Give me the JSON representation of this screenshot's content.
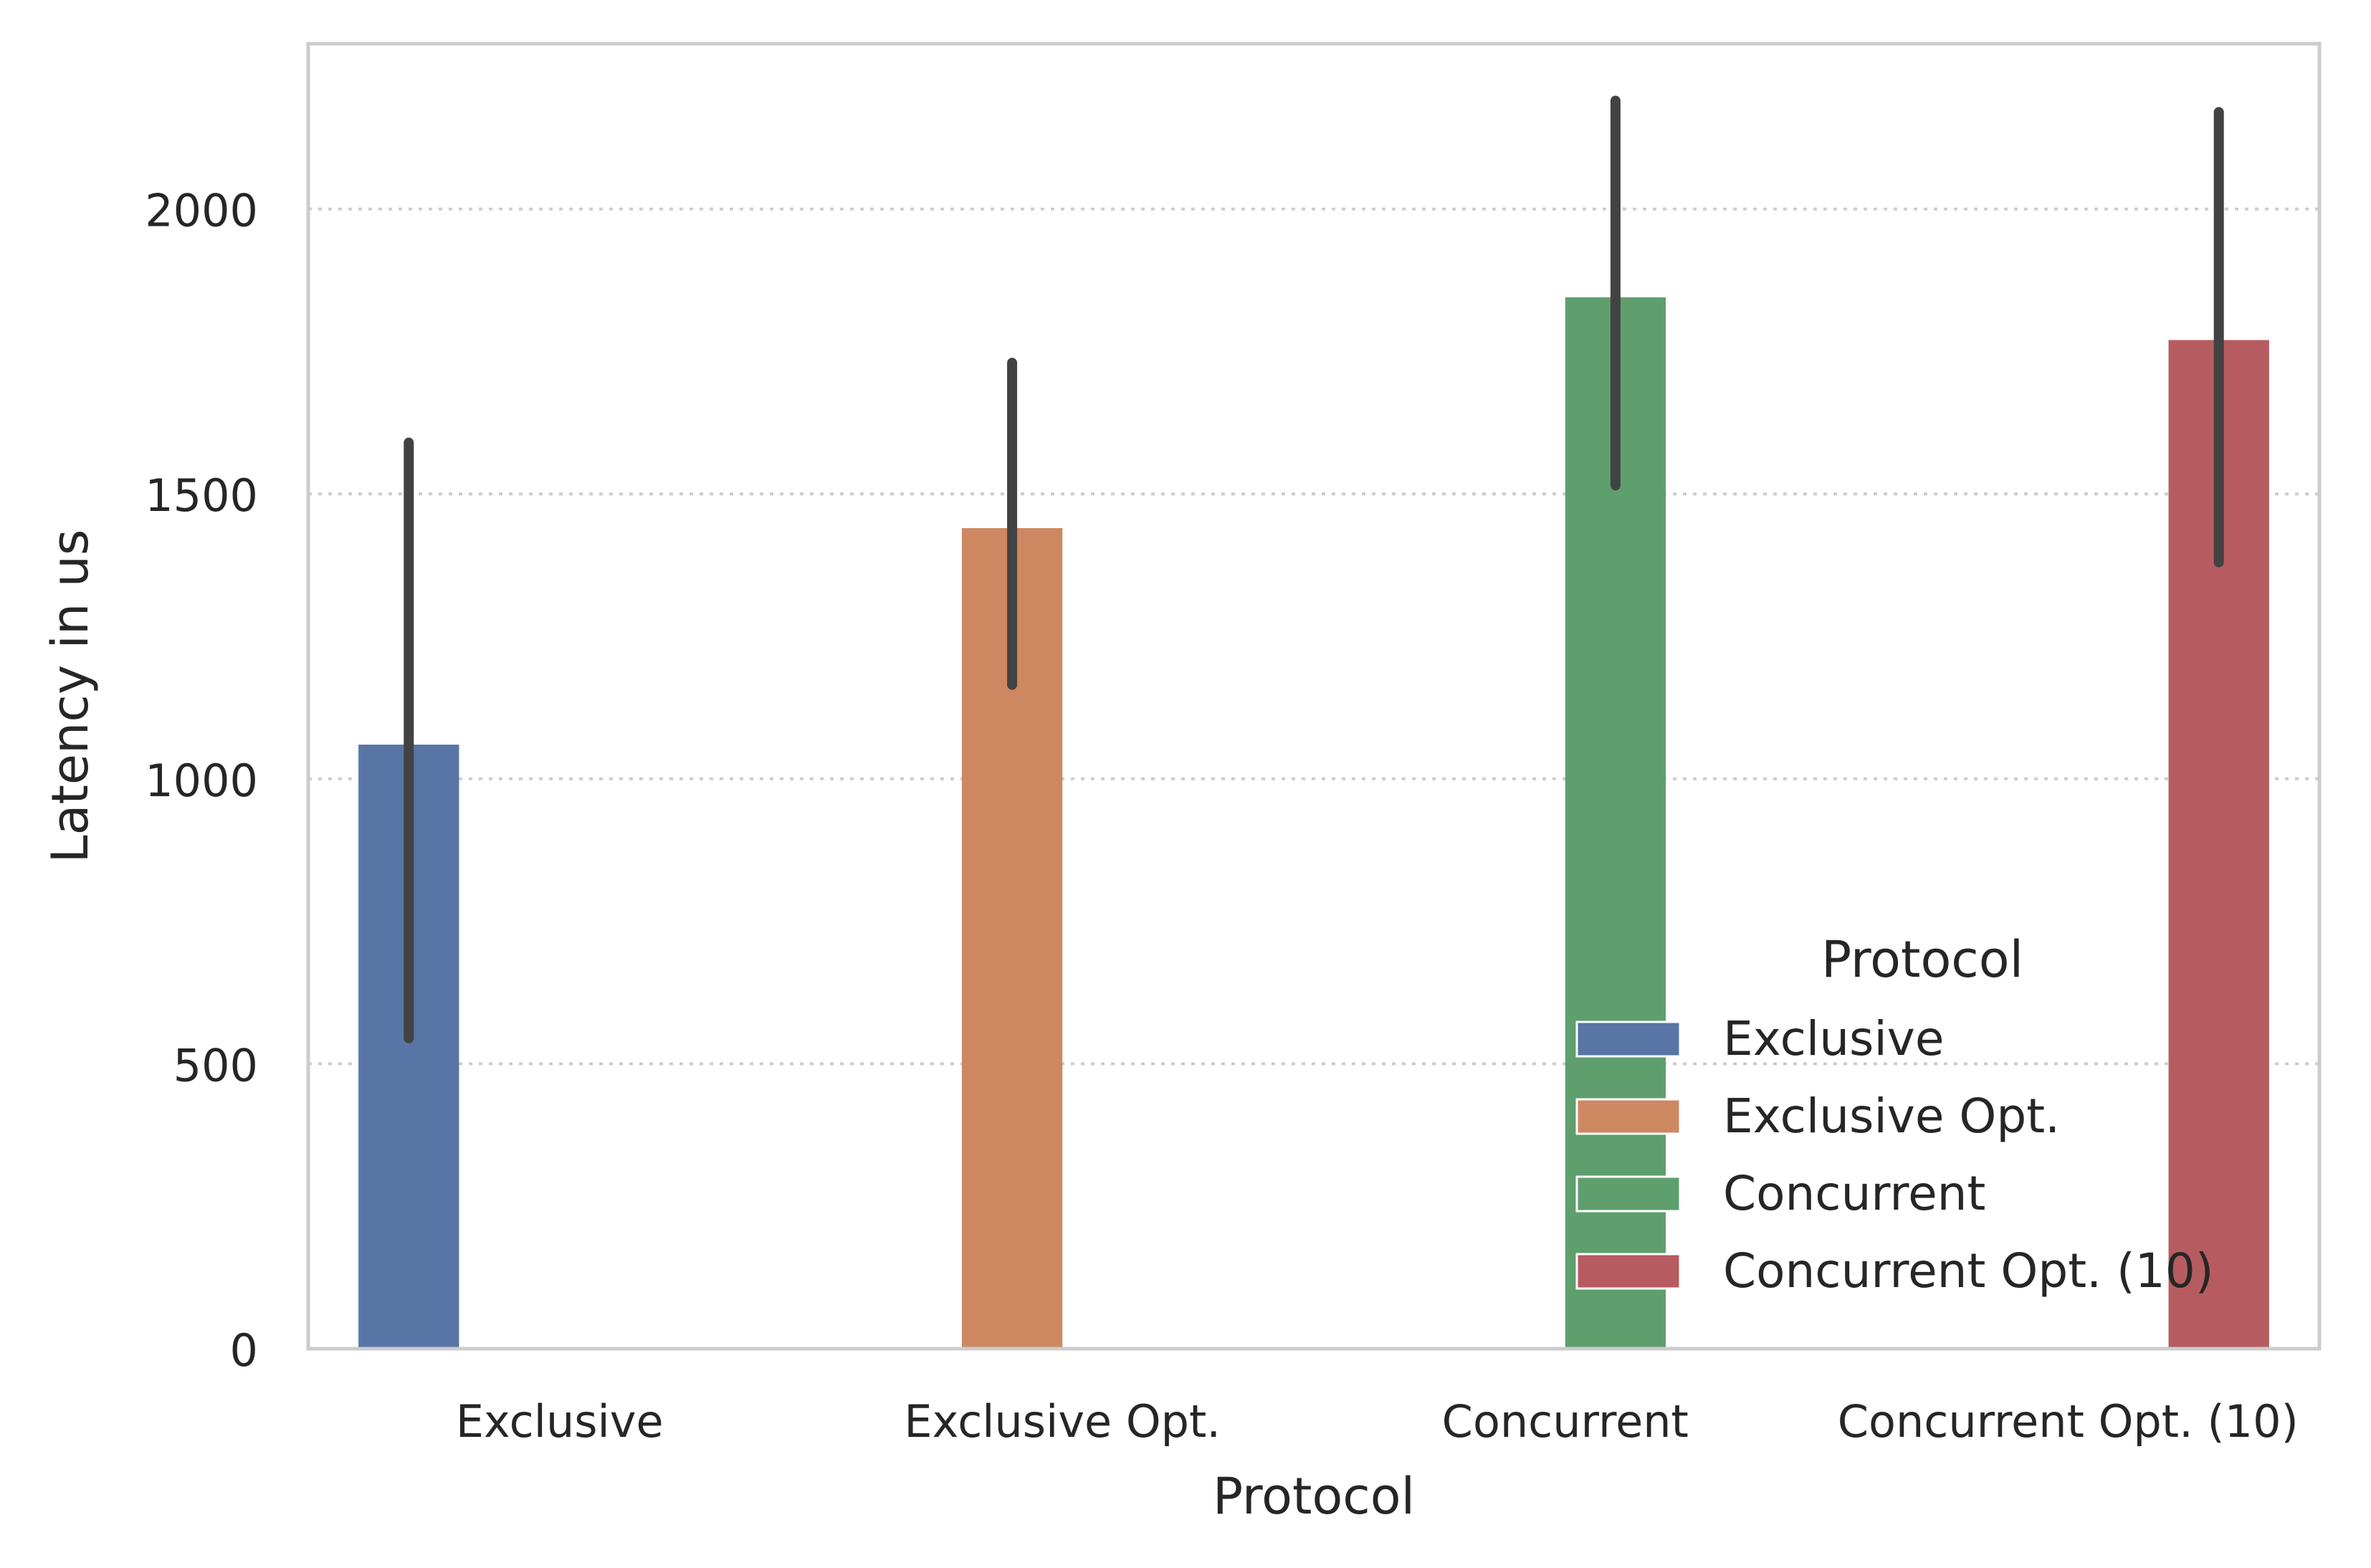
{
  "chart_data": {
    "type": "bar",
    "xlabel": "Protocol",
    "ylabel": "Latency in us",
    "ylim": [
      0,
      2290
    ],
    "yticks": [
      0,
      500,
      1000,
      1500,
      2000
    ],
    "ytick_labels": [
      "0",
      "500",
      "1000",
      "1500",
      "2000"
    ],
    "grid": "y-dotted",
    "categories": [
      "Exclusive",
      "Exclusive Opt.",
      "Concurrent",
      "Concurrent Opt. (10)"
    ],
    "series": [
      {
        "name": "Exclusive",
        "color": "#5875a6",
        "values": [
          1060,
          null,
          null,
          null
        ],
        "ci_low": [
          545,
          null,
          null,
          null
        ],
        "ci_high": [
          1590,
          null,
          null,
          null
        ]
      },
      {
        "name": "Exclusive Opt.",
        "color": "#cd8862",
        "values": [
          null,
          1440,
          null,
          null
        ],
        "ci_low": [
          null,
          1165,
          null,
          null
        ],
        "ci_high": [
          null,
          1730,
          null,
          null
        ]
      },
      {
        "name": "Concurrent",
        "color": "#5f9f6d",
        "values": [
          null,
          null,
          1845,
          null
        ],
        "ci_low": [
          null,
          null,
          1515,
          null
        ],
        "ci_high": [
          null,
          null,
          2190,
          null
        ]
      },
      {
        "name": "Concurrent Opt. (10)",
        "color": "#b65c61",
        "values": [
          null,
          null,
          null,
          1770
        ],
        "ci_low": [
          null,
          null,
          null,
          1380
        ],
        "ci_high": [
          null,
          null,
          null,
          2170
        ]
      }
    ],
    "legend": {
      "title": "Protocol",
      "position": "lower-right"
    }
  }
}
